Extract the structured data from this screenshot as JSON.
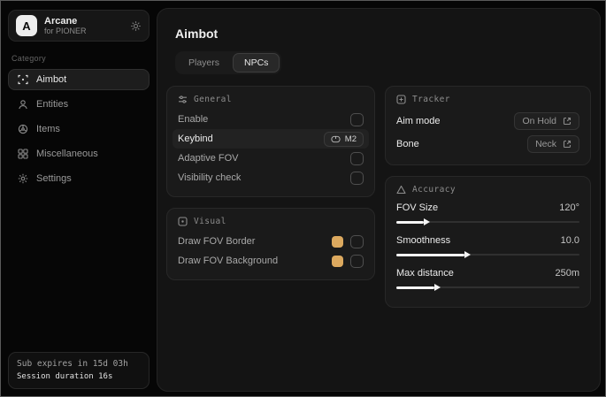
{
  "app": {
    "name": "Arcane",
    "subtitle": "for PIONER",
    "logo_letter": "A"
  },
  "sidebar": {
    "category_label": "Category",
    "items": [
      {
        "label": "Aimbot",
        "active": true
      },
      {
        "label": "Entities",
        "active": false
      },
      {
        "label": "Items",
        "active": false
      },
      {
        "label": "Miscellaneous",
        "active": false
      },
      {
        "label": "Settings",
        "active": false
      }
    ],
    "status_line1": "Sub expires in 15d 03h",
    "status_line2": "Session duration 16s"
  },
  "main": {
    "title": "Aimbot",
    "tabs": {
      "players": "Players",
      "npcs": "NPCs"
    },
    "general": {
      "title": "General",
      "enable_label": "Enable",
      "keybind_label": "Keybind",
      "keybind_value": "M2",
      "adaptive_fov_label": "Adaptive FOV",
      "visibility_label": "Visibility check"
    },
    "visual": {
      "title": "Visual",
      "border_label": "Draw FOV Border",
      "background_label": "Draw FOV Background"
    },
    "tracker": {
      "title": "Tracker",
      "aim_mode_label": "Aim mode",
      "aim_mode_value": "On Hold",
      "bone_label": "Bone",
      "bone_value": "Neck"
    },
    "accuracy": {
      "title": "Accuracy",
      "sliders": [
        {
          "label": "FOV Size",
          "value": "120°",
          "fill_pct": 15
        },
        {
          "label": "Smoothness",
          "value": "10.0",
          "fill_pct": 37
        },
        {
          "label": "Max distance",
          "value": "250m",
          "fill_pct": 21
        }
      ]
    }
  },
  "colors": {
    "swatch": "#dca95f"
  }
}
